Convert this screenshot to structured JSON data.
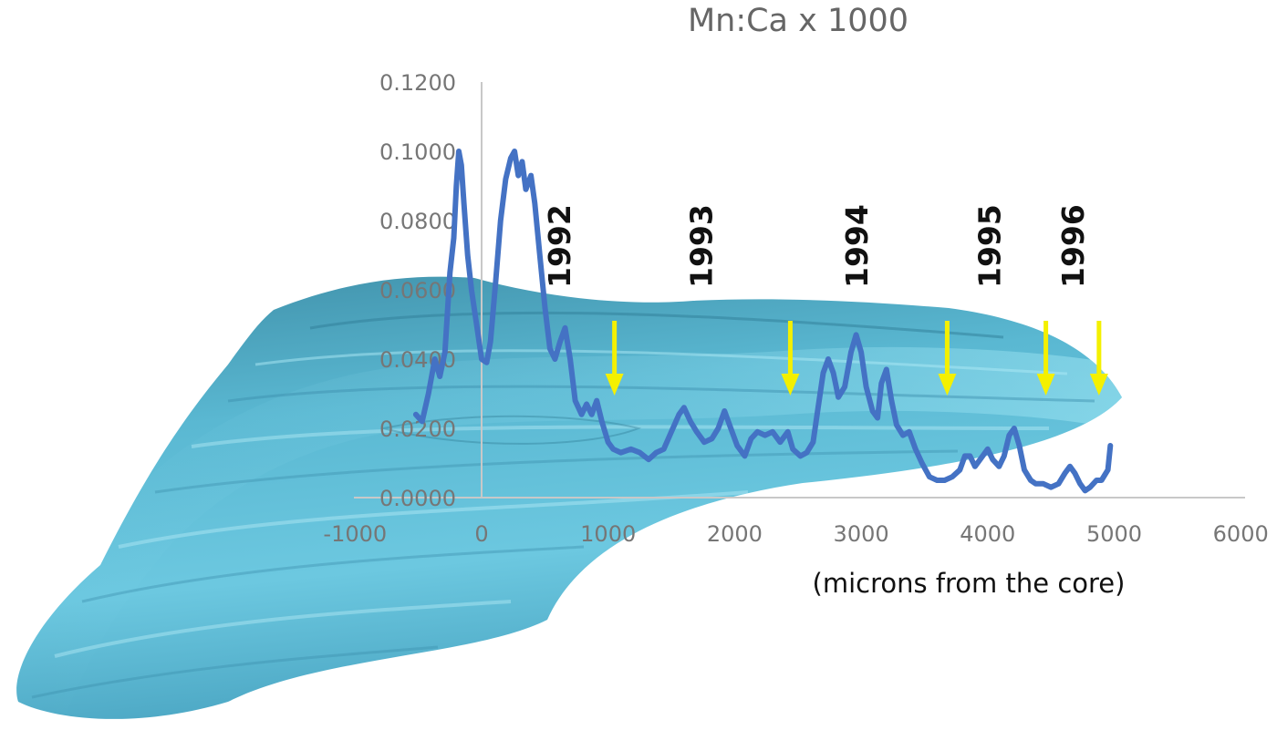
{
  "chart_data": {
    "type": "line",
    "title": "Mn:Ca x 1000",
    "xlabel": "(microns from the core)",
    "ylabel": "",
    "xlim": [
      -1000,
      6000
    ],
    "ylim": [
      0,
      0.12
    ],
    "x_ticks": [
      "-1000",
      "0",
      "1000",
      "2000",
      "3000",
      "4000",
      "5000",
      "6000"
    ],
    "y_ticks": [
      "0.0000",
      "0.0200",
      "0.0400",
      "0.0600",
      "0.0800",
      "0.1000",
      "0.1200"
    ],
    "grid": false,
    "annotations": {
      "years": [
        {
          "label": "1992",
          "x": 700
        },
        {
          "label": "1993",
          "x": 1820
        },
        {
          "label": "1994",
          "x": 3050
        },
        {
          "label": "1995",
          "x": 4100
        },
        {
          "label": "1996",
          "x": 4760
        }
      ],
      "arrows_x": [
        1050,
        2440,
        3680,
        4460,
        4880
      ],
      "arrow_color": "#f4f000"
    },
    "series": [
      {
        "color": "#4472c4",
        "points": [
          [
            -520,
            0.024
          ],
          [
            -470,
            0.022
          ],
          [
            -420,
            0.03
          ],
          [
            -370,
            0.04
          ],
          [
            -330,
            0.035
          ],
          [
            -290,
            0.042
          ],
          [
            -250,
            0.065
          ],
          [
            -220,
            0.075
          ],
          [
            -200,
            0.09
          ],
          [
            -180,
            0.1
          ],
          [
            -160,
            0.096
          ],
          [
            -140,
            0.085
          ],
          [
            -110,
            0.07
          ],
          [
            -80,
            0.06
          ],
          [
            -40,
            0.05
          ],
          [
            0,
            0.04
          ],
          [
            40,
            0.039
          ],
          [
            70,
            0.045
          ],
          [
            110,
            0.062
          ],
          [
            150,
            0.08
          ],
          [
            190,
            0.092
          ],
          [
            230,
            0.098
          ],
          [
            260,
            0.1
          ],
          [
            290,
            0.093
          ],
          [
            320,
            0.097
          ],
          [
            350,
            0.089
          ],
          [
            390,
            0.093
          ],
          [
            420,
            0.085
          ],
          [
            460,
            0.07
          ],
          [
            500,
            0.055
          ],
          [
            540,
            0.043
          ],
          [
            580,
            0.04
          ],
          [
            620,
            0.045
          ],
          [
            660,
            0.049
          ],
          [
            700,
            0.04
          ],
          [
            740,
            0.028
          ],
          [
            790,
            0.024
          ],
          [
            830,
            0.027
          ],
          [
            870,
            0.024
          ],
          [
            910,
            0.028
          ],
          [
            950,
            0.022
          ],
          [
            1000,
            0.016
          ],
          [
            1040,
            0.014
          ],
          [
            1100,
            0.013
          ],
          [
            1180,
            0.014
          ],
          [
            1250,
            0.013
          ],
          [
            1320,
            0.011
          ],
          [
            1380,
            0.013
          ],
          [
            1440,
            0.014
          ],
          [
            1500,
            0.019
          ],
          [
            1560,
            0.024
          ],
          [
            1600,
            0.026
          ],
          [
            1650,
            0.022
          ],
          [
            1700,
            0.019
          ],
          [
            1760,
            0.016
          ],
          [
            1820,
            0.017
          ],
          [
            1870,
            0.02
          ],
          [
            1920,
            0.025
          ],
          [
            1970,
            0.02
          ],
          [
            2020,
            0.015
          ],
          [
            2080,
            0.012
          ],
          [
            2130,
            0.017
          ],
          [
            2180,
            0.019
          ],
          [
            2240,
            0.018
          ],
          [
            2300,
            0.019
          ],
          [
            2360,
            0.016
          ],
          [
            2420,
            0.019
          ],
          [
            2460,
            0.014
          ],
          [
            2520,
            0.012
          ],
          [
            2570,
            0.013
          ],
          [
            2620,
            0.016
          ],
          [
            2660,
            0.026
          ],
          [
            2700,
            0.036
          ],
          [
            2740,
            0.04
          ],
          [
            2780,
            0.036
          ],
          [
            2820,
            0.029
          ],
          [
            2870,
            0.032
          ],
          [
            2920,
            0.042
          ],
          [
            2960,
            0.047
          ],
          [
            3000,
            0.042
          ],
          [
            3040,
            0.032
          ],
          [
            3090,
            0.025
          ],
          [
            3130,
            0.023
          ],
          [
            3160,
            0.033
          ],
          [
            3200,
            0.037
          ],
          [
            3240,
            0.028
          ],
          [
            3280,
            0.021
          ],
          [
            3330,
            0.018
          ],
          [
            3380,
            0.019
          ],
          [
            3430,
            0.014
          ],
          [
            3480,
            0.01
          ],
          [
            3540,
            0.006
          ],
          [
            3600,
            0.005
          ],
          [
            3660,
            0.005
          ],
          [
            3720,
            0.006
          ],
          [
            3780,
            0.008
          ],
          [
            3820,
            0.012
          ],
          [
            3860,
            0.012
          ],
          [
            3900,
            0.009
          ],
          [
            3960,
            0.012
          ],
          [
            4000,
            0.014
          ],
          [
            4040,
            0.011
          ],
          [
            4090,
            0.009
          ],
          [
            4130,
            0.012
          ],
          [
            4170,
            0.018
          ],
          [
            4210,
            0.02
          ],
          [
            4250,
            0.015
          ],
          [
            4290,
            0.008
          ],
          [
            4340,
            0.005
          ],
          [
            4380,
            0.004
          ],
          [
            4440,
            0.004
          ],
          [
            4500,
            0.003
          ],
          [
            4560,
            0.004
          ],
          [
            4610,
            0.007
          ],
          [
            4650,
            0.009
          ],
          [
            4690,
            0.007
          ],
          [
            4730,
            0.004
          ],
          [
            4770,
            0.002
          ],
          [
            4810,
            0.003
          ],
          [
            4860,
            0.005
          ],
          [
            4900,
            0.005
          ],
          [
            4950,
            0.008
          ],
          [
            4970,
            0.015
          ]
        ]
      }
    ]
  }
}
